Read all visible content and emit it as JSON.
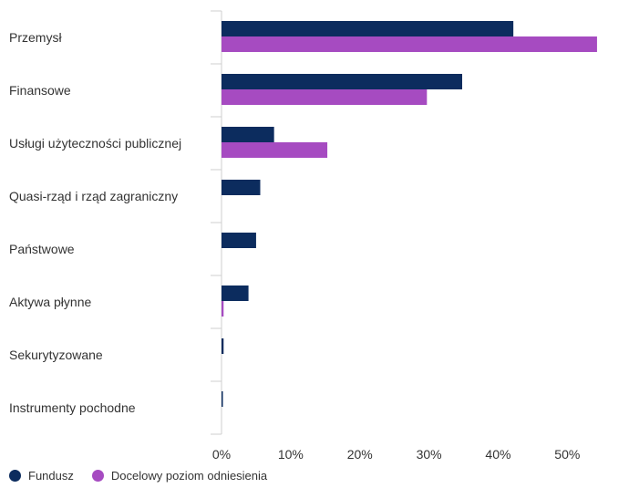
{
  "chart_data": {
    "type": "bar",
    "orientation": "horizontal",
    "categories": [
      "Przemysł",
      "Finansowe",
      "Usługi użyteczności publicznej",
      "Quasi-rząd i rząd zagraniczny",
      "Państwowe",
      "Aktywa płynne",
      "Sekurytyzowane",
      "Instrumenty pochodne"
    ],
    "series": [
      {
        "name": "Fundusz",
        "color": "#0c2c5e",
        "values": [
          42.2,
          34.8,
          7.6,
          5.6,
          5.0,
          3.9,
          0.3,
          0.2
        ]
      },
      {
        "name": "Docelowy poziom odniesienia",
        "color": "#a64bc1",
        "values": [
          54.3,
          29.7,
          15.3,
          0,
          0,
          0.3,
          0,
          0
        ]
      }
    ],
    "xlim": [
      0,
      58
    ],
    "xticks": [
      0,
      10,
      20,
      30,
      40,
      50
    ],
    "xtick_labels": [
      "0%",
      "10%",
      "20%",
      "30%",
      "40%",
      "50%"
    ],
    "legend_position": "bottom-left",
    "grid": false
  }
}
